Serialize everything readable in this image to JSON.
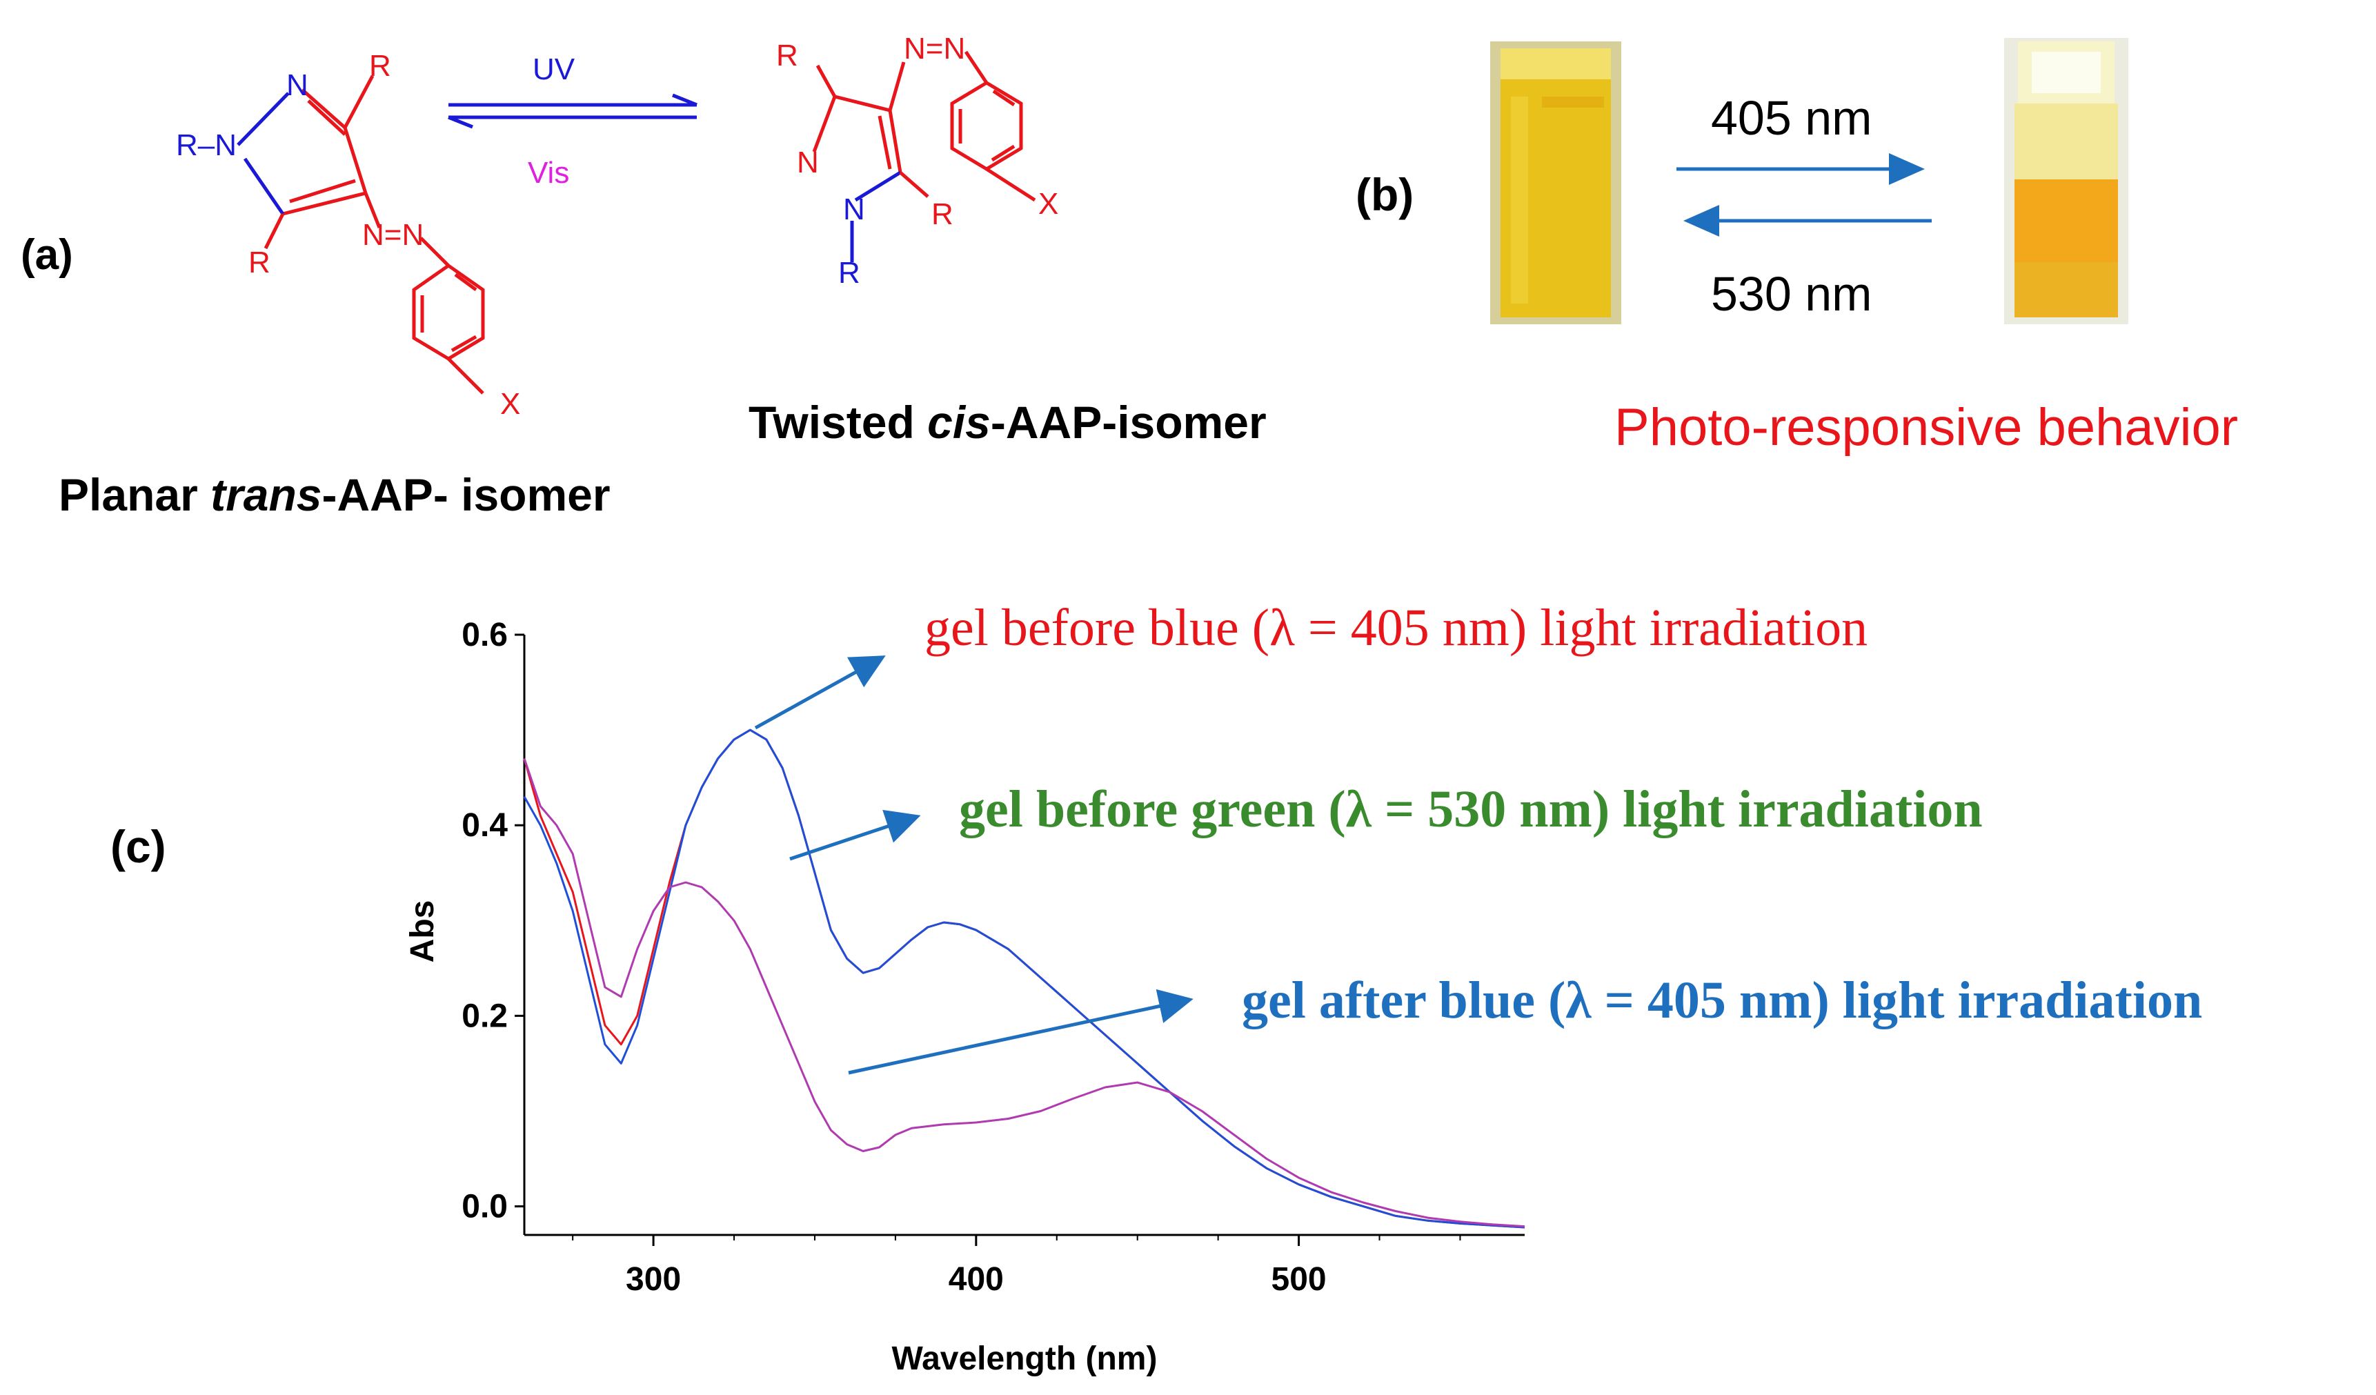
{
  "panel_a": {
    "label": "(a)",
    "arrow_top": "UV",
    "arrow_bottom": "Vis",
    "trans_label_pre": "Planar ",
    "trans_label_it": "trans",
    "trans_label_post": "-AAP- isomer",
    "cis_label_pre": "Twisted ",
    "cis_label_it": "cis",
    "cis_label_post": "-AAP-isomer",
    "atoms": {
      "N": "N",
      "R": "R",
      "X": "X",
      "RN": "R–N",
      "NN": "N=N"
    }
  },
  "panel_b": {
    "label": "(b)",
    "forward": "405 nm",
    "backward": "530 nm",
    "caption": "Photo-responsive behavior"
  },
  "panel_c": {
    "label": "(c)",
    "annotations": {
      "red": "gel before blue (λ = 405 nm) light irradiation",
      "green": "gel before green (λ = 530 nm) light irradiation",
      "blue": "gel after blue (λ = 405 nm) light irradiation"
    },
    "colors": {
      "red": "#e8161b",
      "green": "#3a8a2e",
      "blue": "#1f6fbf",
      "purple": "#b03ab0"
    }
  },
  "chart_data": {
    "type": "line",
    "xlabel": "Wavelength (nm)",
    "ylabel": "Abs",
    "xlim": [
      260,
      570
    ],
    "ylim": [
      -0.03,
      0.6
    ],
    "xticks": [
      300,
      400,
      500
    ],
    "yticks": [
      0.0,
      0.2,
      0.4,
      0.6
    ],
    "xtick_labels": [
      "300",
      "400",
      "500"
    ],
    "ytick_labels": [
      "0.0",
      "0.2",
      "0.4",
      "0.6"
    ],
    "series": [
      {
        "color": "#e8161b",
        "x": [
          260,
          265,
          270,
          275,
          280,
          285,
          290,
          295,
          300,
          305,
          310,
          315,
          320,
          325,
          330,
          335,
          340,
          345,
          350,
          355,
          360,
          365,
          370,
          375,
          380,
          385,
          390,
          395,
          400,
          410,
          420,
          430,
          440,
          450,
          460,
          470,
          480,
          490,
          500,
          510,
          520,
          530,
          540,
          550,
          560,
          570
        ],
        "y": [
          0.47,
          0.41,
          0.37,
          0.33,
          0.26,
          0.19,
          0.17,
          0.2,
          0.27,
          0.34,
          0.4,
          0.44,
          0.47,
          0.49,
          0.5,
          0.49,
          0.46,
          0.41,
          0.35,
          0.29,
          0.26,
          0.245,
          0.25,
          0.265,
          0.28,
          0.293,
          0.298,
          0.296,
          0.29,
          0.27,
          0.24,
          0.21,
          0.18,
          0.15,
          0.12,
          0.09,
          0.063,
          0.04,
          0.023,
          0.01,
          0.0,
          -0.01,
          -0.015,
          -0.018,
          -0.02,
          -0.022
        ]
      },
      {
        "color": "#1f4fd8",
        "x": [
          260,
          265,
          270,
          275,
          280,
          285,
          290,
          295,
          300,
          305,
          310,
          315,
          320,
          325,
          330,
          335,
          340,
          345,
          350,
          355,
          360,
          365,
          370,
          375,
          380,
          385,
          390,
          395,
          400,
          410,
          420,
          430,
          440,
          450,
          460,
          470,
          480,
          490,
          500,
          510,
          520,
          530,
          540,
          550,
          560,
          570
        ],
        "y": [
          0.43,
          0.4,
          0.36,
          0.31,
          0.24,
          0.17,
          0.15,
          0.19,
          0.26,
          0.33,
          0.4,
          0.44,
          0.47,
          0.49,
          0.5,
          0.49,
          0.46,
          0.41,
          0.35,
          0.29,
          0.26,
          0.245,
          0.25,
          0.265,
          0.28,
          0.293,
          0.298,
          0.296,
          0.29,
          0.27,
          0.24,
          0.21,
          0.18,
          0.15,
          0.12,
          0.09,
          0.063,
          0.04,
          0.023,
          0.01,
          0.0,
          -0.01,
          -0.015,
          -0.018,
          -0.02,
          -0.022
        ]
      },
      {
        "color": "#b03ab0",
        "x": [
          260,
          265,
          270,
          275,
          280,
          285,
          290,
          295,
          300,
          305,
          310,
          315,
          320,
          325,
          330,
          335,
          340,
          345,
          350,
          355,
          360,
          365,
          370,
          375,
          380,
          390,
          400,
          410,
          420,
          430,
          440,
          450,
          460,
          470,
          480,
          490,
          500,
          510,
          520,
          530,
          540,
          550,
          560,
          570
        ],
        "y": [
          0.47,
          0.42,
          0.4,
          0.37,
          0.3,
          0.23,
          0.22,
          0.27,
          0.31,
          0.335,
          0.34,
          0.335,
          0.32,
          0.3,
          0.27,
          0.23,
          0.19,
          0.15,
          0.11,
          0.08,
          0.065,
          0.058,
          0.062,
          0.075,
          0.082,
          0.086,
          0.088,
          0.092,
          0.1,
          0.113,
          0.125,
          0.13,
          0.12,
          0.1,
          0.075,
          0.05,
          0.03,
          0.015,
          0.004,
          -0.005,
          -0.012,
          -0.016,
          -0.019,
          -0.021
        ]
      }
    ]
  }
}
